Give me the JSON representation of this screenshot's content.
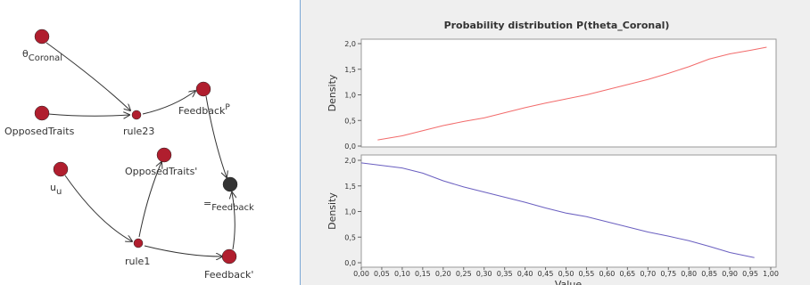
{
  "diagram": {
    "nodes": [
      {
        "label": "θ",
        "sub": "Coronal"
      },
      {
        "label": "OpposedTraits"
      },
      {
        "label": "rule23"
      },
      {
        "label": "Feedback",
        "sup": "P"
      },
      {
        "label": "u",
        "sub": "u"
      },
      {
        "label": "OpposedTraits'"
      },
      {
        "label": "rule1"
      },
      {
        "label": "=",
        "sub": "Feedback"
      },
      {
        "label": "Feedback'"
      }
    ]
  },
  "chart_data": [
    {
      "type": "line",
      "title": "Probability distribution P(theta_Coronal)",
      "y_label": "Density",
      "x": [
        0.04,
        0.1,
        0.15,
        0.2,
        0.25,
        0.3,
        0.35,
        0.4,
        0.45,
        0.5,
        0.55,
        0.6,
        0.65,
        0.7,
        0.75,
        0.8,
        0.85,
        0.9,
        0.95,
        0.99
      ],
      "series": [
        {
          "color": "#f26b6b",
          "values": [
            0.12,
            0.2,
            0.3,
            0.4,
            0.48,
            0.55,
            0.65,
            0.75,
            0.84,
            0.92,
            1.0,
            1.1,
            1.2,
            1.3,
            1.42,
            1.55,
            1.7,
            1.8,
            1.87,
            1.93
          ]
        }
      ],
      "xlim": [
        0,
        1
      ],
      "ylim": [
        0,
        2
      ],
      "yticks": [
        {
          "value": 0,
          "label": "0,0"
        },
        {
          "value": 0.5,
          "label": "0,5"
        },
        {
          "value": 1,
          "label": "1,0"
        },
        {
          "value": 1.5,
          "label": "1,5"
        },
        {
          "value": 2,
          "label": "2,0"
        }
      ]
    },
    {
      "type": "line",
      "y_label": "Density",
      "x_label": "Value",
      "x": [
        0,
        0.05,
        0.1,
        0.15,
        0.2,
        0.25,
        0.3,
        0.35,
        0.4,
        0.45,
        0.5,
        0.55,
        0.6,
        0.65,
        0.7,
        0.75,
        0.8,
        0.85,
        0.9,
        0.96
      ],
      "series": [
        {
          "color": "#6a5fc0",
          "values": [
            1.95,
            1.9,
            1.85,
            1.75,
            1.6,
            1.48,
            1.38,
            1.28,
            1.18,
            1.07,
            0.97,
            0.9,
            0.8,
            0.7,
            0.6,
            0.52,
            0.43,
            0.32,
            0.2,
            0.1
          ]
        }
      ],
      "xlim": [
        0,
        1
      ],
      "ylim": [
        0,
        2
      ],
      "xticks": [
        {
          "value": 0,
          "label": "0,00"
        },
        {
          "value": 0.05,
          "label": "0,05"
        },
        {
          "value": 0.1,
          "label": "0,10"
        },
        {
          "value": 0.15,
          "label": "0,15"
        },
        {
          "value": 0.2,
          "label": "0,20"
        },
        {
          "value": 0.25,
          "label": "0,25"
        },
        {
          "value": 0.3,
          "label": "0,30"
        },
        {
          "value": 0.35,
          "label": "0,35"
        },
        {
          "value": 0.4,
          "label": "0,40"
        },
        {
          "value": 0.45,
          "label": "0,45"
        },
        {
          "value": 0.5,
          "label": "0,50"
        },
        {
          "value": 0.55,
          "label": "0,55"
        },
        {
          "value": 0.6,
          "label": "0,60"
        },
        {
          "value": 0.65,
          "label": "0,65"
        },
        {
          "value": 0.7,
          "label": "0,70"
        },
        {
          "value": 0.75,
          "label": "0,75"
        },
        {
          "value": 0.8,
          "label": "0,80"
        },
        {
          "value": 0.85,
          "label": "0,85"
        },
        {
          "value": 0.9,
          "label": "0,90"
        },
        {
          "value": 0.95,
          "label": "0,95"
        },
        {
          "value": 1,
          "label": "1,00"
        }
      ],
      "yticks": [
        {
          "value": 0,
          "label": "0,0"
        },
        {
          "value": 0.5,
          "label": "0,5"
        },
        {
          "value": 1,
          "label": "1,0"
        },
        {
          "value": 1.5,
          "label": "1,5"
        },
        {
          "value": 2,
          "label": "2,0"
        }
      ]
    }
  ]
}
